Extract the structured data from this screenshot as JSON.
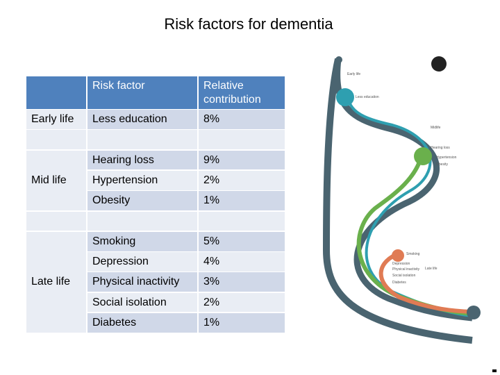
{
  "title": "Risk factors for dementia",
  "table": {
    "header": [
      "Risk factor",
      "Relative contribution"
    ],
    "groups": [
      {
        "stage": "Early life",
        "rows": [
          [
            "Less education",
            "8%"
          ]
        ]
      },
      {
        "stage": "Mid life",
        "rows": [
          [
            "Hearing loss",
            "9%"
          ],
          [
            "Hypertension",
            "2%"
          ],
          [
            "Obesity",
            "1%"
          ]
        ]
      },
      {
        "stage": "Late life",
        "rows": [
          [
            "Smoking",
            "5%"
          ],
          [
            "Depression",
            "4%"
          ],
          [
            "Physical inactivity",
            "3%"
          ],
          [
            "Social isolation",
            "2%"
          ],
          [
            "Diabetes",
            "1%"
          ]
        ]
      }
    ]
  },
  "figure": {
    "labels": [
      "Early life",
      "Midlife",
      "Late life",
      "Less education",
      "Hearing loss",
      "Hypertension",
      "Obesity",
      "Smoking",
      "Depression",
      "Physical inactivity",
      "Social isolation",
      "Diabetes"
    ]
  }
}
